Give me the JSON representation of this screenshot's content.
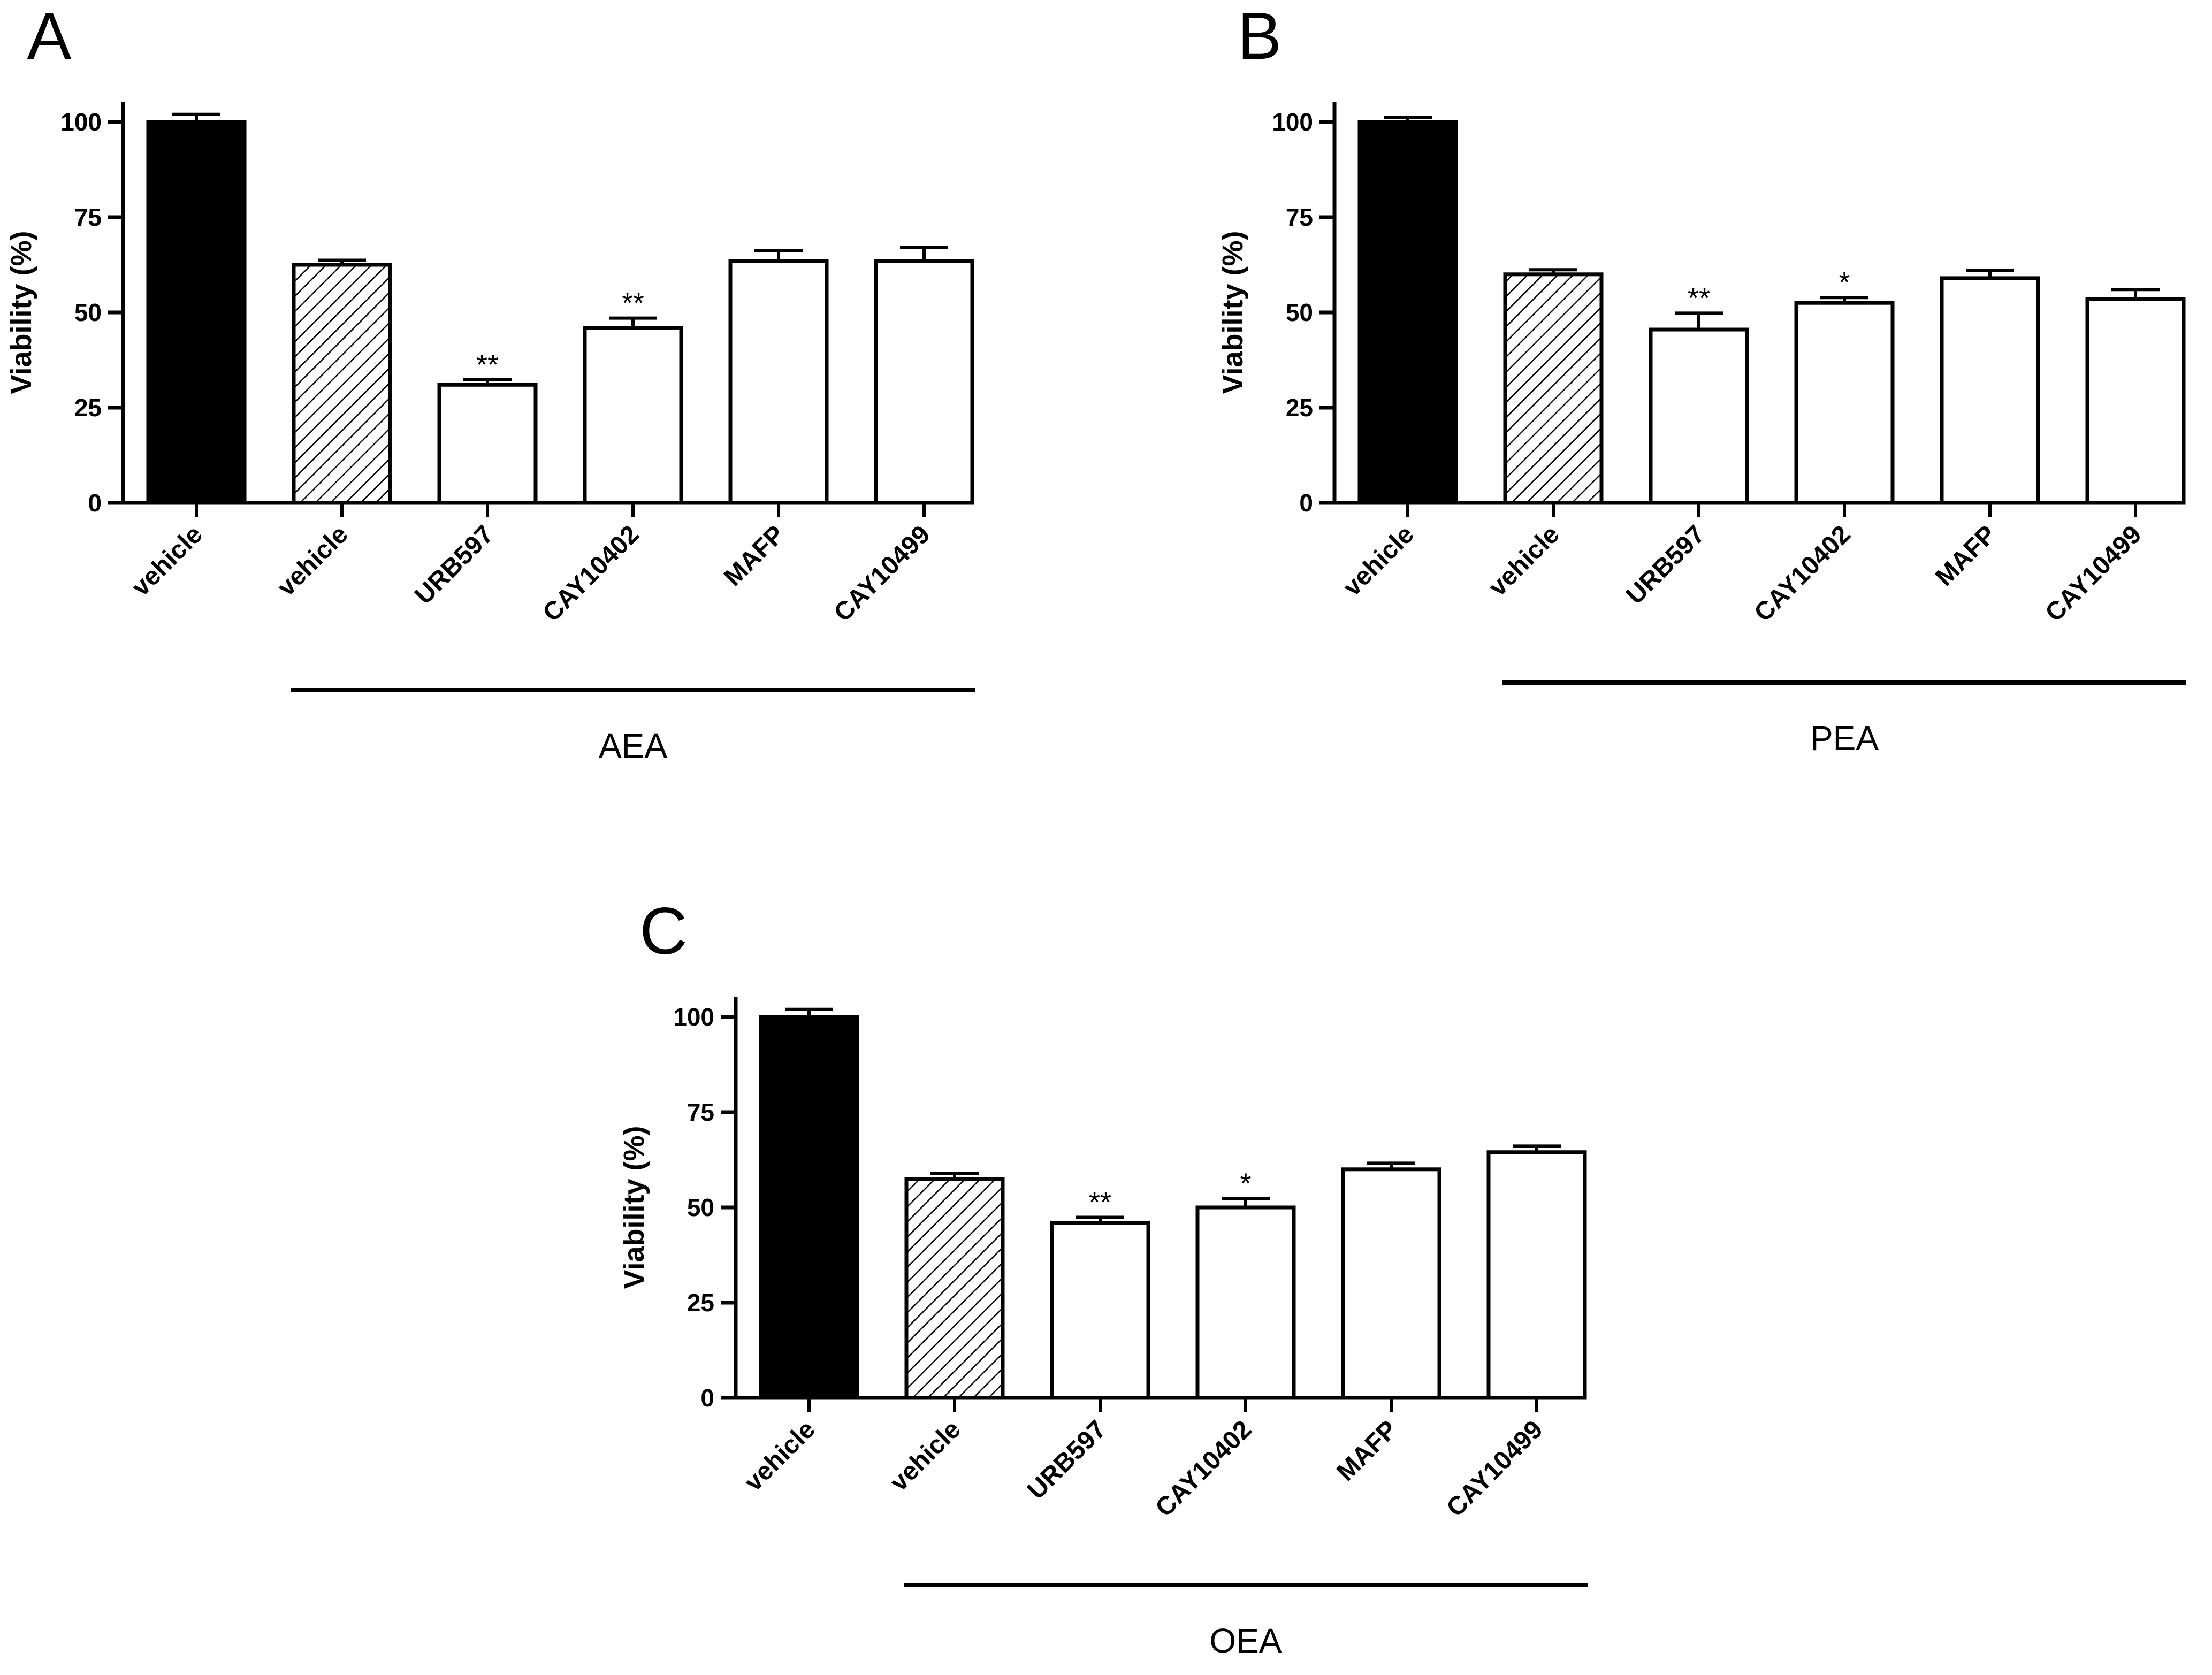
{
  "chart_data": [
    {
      "panel": "A",
      "type": "bar",
      "ylabel": "Viability (%)",
      "ylim": [
        0,
        100
      ],
      "yticks": [
        0,
        25,
        50,
        75,
        100
      ],
      "categories": [
        "vehicle",
        "vehicle",
        "URB597",
        "CAY10402",
        "MAFP",
        "CAY10499"
      ],
      "values": [
        100,
        62.5,
        31,
        46,
        63.5,
        63.5
      ],
      "errors": [
        2,
        1.2,
        1.3,
        2.5,
        2.8,
        3.5
      ],
      "fills": [
        "black",
        "hatched",
        "white",
        "white",
        "white",
        "white"
      ],
      "significance": [
        "",
        "",
        "**",
        "**",
        "",
        ""
      ],
      "group_label": "AEA"
    },
    {
      "panel": "B",
      "type": "bar",
      "ylabel": "Viability (%)",
      "ylim": [
        0,
        100
      ],
      "yticks": [
        0,
        25,
        50,
        75,
        100
      ],
      "categories": [
        "vehicle",
        "vehicle",
        "URB597",
        "CAY10402",
        "MAFP",
        "CAY10499"
      ],
      "values": [
        100,
        60,
        45.5,
        52.5,
        59,
        53.5
      ],
      "errors": [
        1.2,
        1.2,
        4.3,
        1.4,
        2,
        2.5
      ],
      "fills": [
        "black",
        "hatched",
        "white",
        "white",
        "white",
        "white"
      ],
      "significance": [
        "",
        "",
        "**",
        "*",
        "",
        ""
      ],
      "group_label": "PEA"
    },
    {
      "panel": "C",
      "type": "bar",
      "ylabel": "Viability (%)",
      "ylim": [
        0,
        100
      ],
      "yticks": [
        0,
        25,
        50,
        75,
        100
      ],
      "categories": [
        "vehicle",
        "vehicle",
        "URB597",
        "CAY10402",
        "MAFP",
        "CAY10499"
      ],
      "values": [
        100,
        57.5,
        46,
        50,
        60,
        64.5
      ],
      "errors": [
        2,
        1.4,
        1.4,
        2.3,
        1.6,
        1.6
      ],
      "fills": [
        "black",
        "hatched",
        "white",
        "white",
        "white",
        "white"
      ],
      "significance": [
        "",
        "",
        "**",
        "*",
        "",
        ""
      ],
      "group_label": "OEA"
    }
  ]
}
